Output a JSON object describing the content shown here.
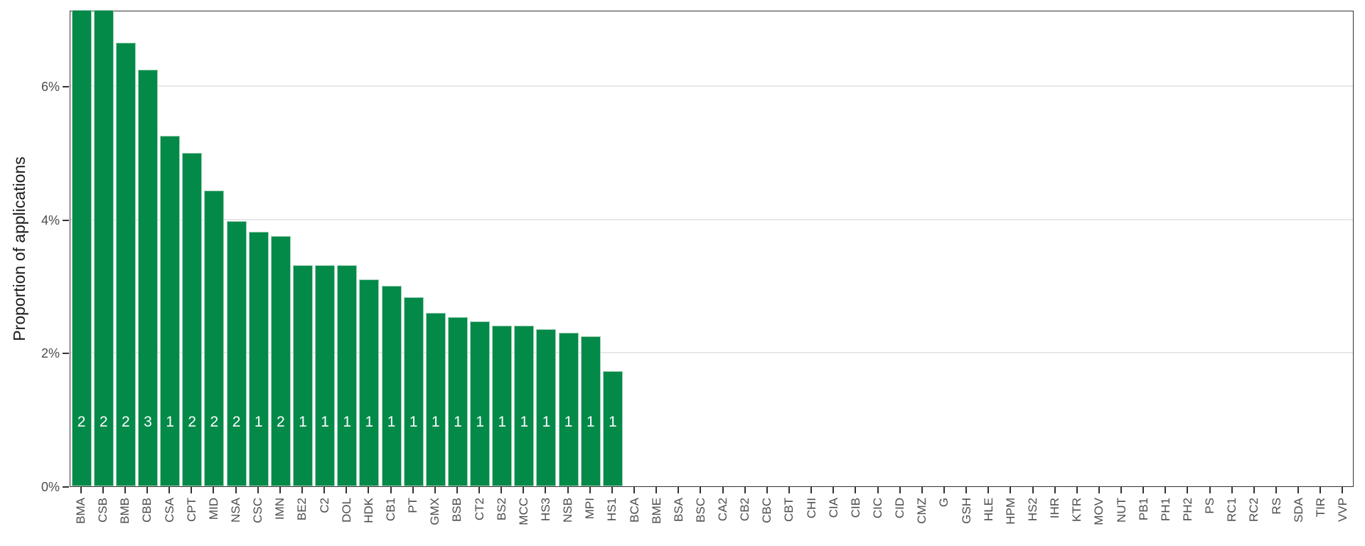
{
  "chart_data": {
    "type": "bar",
    "title": "",
    "xlabel": "",
    "ylabel": "Proportion of applications",
    "categories": [
      "BMA",
      "CSB",
      "BMB",
      "CBB",
      "CSA",
      "CPT",
      "MID",
      "NSA",
      "CSC",
      "IMN",
      "BE2",
      "C2",
      "DOL",
      "HDK",
      "CB1",
      "PT",
      "GMX",
      "BSB",
      "CT2",
      "BS2",
      "MCC",
      "HS3",
      "NSB",
      "MPI",
      "HS1",
      "BCA",
      "BME",
      "BSA",
      "BSC",
      "CA2",
      "CB2",
      "CBC",
      "CBT",
      "CHI",
      "CIA",
      "CIB",
      "CIC",
      "CID",
      "CMZ",
      "G",
      "GSH",
      "HLE",
      "HPM",
      "HS2",
      "IHR",
      "KTR",
      "MOV",
      "NUT",
      "PB1",
      "PH1",
      "PH2",
      "PS",
      "RC1",
      "RC2",
      "RS",
      "SDA",
      "TIR",
      "VVP"
    ],
    "values_percent": [
      7.15,
      7.15,
      6.65,
      6.25,
      5.25,
      5.0,
      4.43,
      3.98,
      3.82,
      3.75,
      3.31,
      3.31,
      3.31,
      3.1,
      3.01,
      2.84,
      2.6,
      2.54,
      2.47,
      2.41,
      2.41,
      2.36,
      2.3,
      2.25,
      1.73,
      0,
      0,
      0,
      0,
      0,
      0,
      0,
      0,
      0,
      0,
      0,
      0,
      0,
      0,
      0,
      0,
      0,
      0,
      0,
      0,
      0,
      0,
      0,
      0,
      0,
      0,
      0,
      0,
      0,
      0,
      0,
      0,
      0
    ],
    "bar_count_labels": [
      "2",
      "2",
      "2",
      "3",
      "1",
      "2",
      "2",
      "2",
      "1",
      "2",
      "1",
      "1",
      "1",
      "1",
      "1",
      "1",
      "1",
      "1",
      "1",
      "1",
      "1",
      "1",
      "1",
      "1",
      "1",
      null,
      null,
      null,
      null,
      null,
      null,
      null,
      null,
      null,
      null,
      null,
      null,
      null,
      null,
      null,
      null,
      null,
      null,
      null,
      null,
      null,
      null,
      null,
      null,
      null,
      null,
      null,
      null,
      null,
      null,
      null,
      null,
      null
    ],
    "yticks": [
      {
        "label": "0%",
        "value": 0
      },
      {
        "label": "2%",
        "value": 2
      },
      {
        "label": "4%",
        "value": 4
      },
      {
        "label": "6%",
        "value": 6
      }
    ],
    "ylim": [
      0,
      7.14
    ],
    "gridlines_at": [
      2,
      4,
      6
    ],
    "grid": "major-horizontal",
    "legend": "none",
    "colors": {
      "bar_fill": "#048A48",
      "bar_edge": "#9CCDB0",
      "bar_label_text": "#FFFFFF",
      "axis_border": "#333333",
      "gridline": "#E8E8E8",
      "tick_label": "#4D4D4D",
      "axis_title": "#1A1A1A",
      "background": "#FFFFFF"
    }
  }
}
